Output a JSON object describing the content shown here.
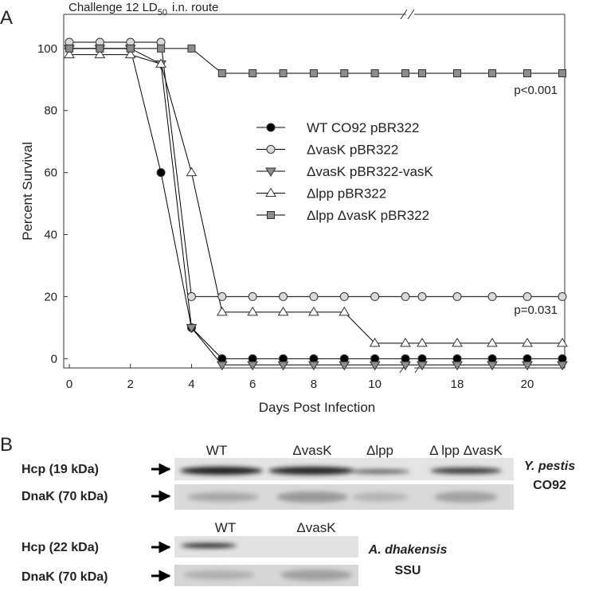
{
  "panel_labels": [
    "A",
    "B"
  ],
  "chart_data": {
    "type": "line",
    "title_parts": [
      "Challenge 12 LD",
      "50",
      "i.n. route"
    ],
    "xlabel": "Days Post Infection",
    "ylabel": "Percent Survival",
    "x": [
      0,
      1,
      2,
      3,
      4,
      5,
      6,
      7,
      8,
      9,
      10,
      11,
      17,
      18,
      19,
      20,
      21
    ],
    "xlim": [
      0,
      21
    ],
    "xticks": [
      0,
      2,
      4,
      6,
      8,
      10,
      18,
      20
    ],
    "ylim": [
      -3,
      111
    ],
    "yticks": [
      0,
      20,
      40,
      60,
      80,
      100
    ],
    "legend": "center",
    "series": [
      {
        "name": "WT CO92 pBR322",
        "color": "#000000",
        "marker": "circle",
        "values": [
          100,
          100,
          100,
          60,
          10,
          0,
          0,
          0,
          0,
          0,
          0,
          0,
          0,
          0,
          0,
          0,
          0
        ]
      },
      {
        "name": "ΔvasK pBR322",
        "color": "#d9d9d9",
        "marker": "circle",
        "values": [
          102,
          102,
          102,
          102,
          20,
          20,
          20,
          20,
          20,
          20,
          20,
          20,
          20,
          20,
          20,
          20,
          20
        ]
      },
      {
        "name": "ΔvasK pBR322-vasK",
        "color": "#8c8c8c",
        "marker": "triangle-down",
        "values": [
          100,
          100,
          100,
          95,
          10,
          -2,
          -2,
          -2,
          -2,
          -2,
          -2,
          -2,
          -2,
          -2,
          -2,
          -2,
          -2
        ]
      },
      {
        "name": "Δlpp pBR322",
        "color": "#ffffff",
        "marker": "triangle",
        "values": [
          98,
          98,
          98,
          95,
          60,
          15,
          15,
          15,
          15,
          15,
          5,
          5,
          5,
          5,
          5,
          5,
          5
        ]
      },
      {
        "name": "Δlpp ΔvasK pBR322",
        "color": "#8c8c8c",
        "marker": "square",
        "values": [
          100,
          100,
          100,
          100,
          100,
          92,
          92,
          92,
          92,
          92,
          92,
          92,
          92,
          92,
          92,
          92,
          92
        ]
      }
    ],
    "annotations": [
      "p<0.001",
      "p=0.031"
    ]
  },
  "panel_b": {
    "blot1": {
      "lanes": [
        "WT",
        "ΔvasK",
        "Δlpp",
        "Δ lpp ΔvasK"
      ],
      "rows": [
        "Hcp (19 kDa)",
        "DnaK (70 kDa)"
      ],
      "organism": [
        "Y. pestis",
        "CO92"
      ]
    },
    "blot2": {
      "lanes": [
        "WT",
        "ΔvasK"
      ],
      "rows": [
        "Hcp (22 kDa)",
        "DnaK (70 kDa)"
      ],
      "organism": [
        "A. dhakensis",
        "SSU"
      ]
    }
  }
}
